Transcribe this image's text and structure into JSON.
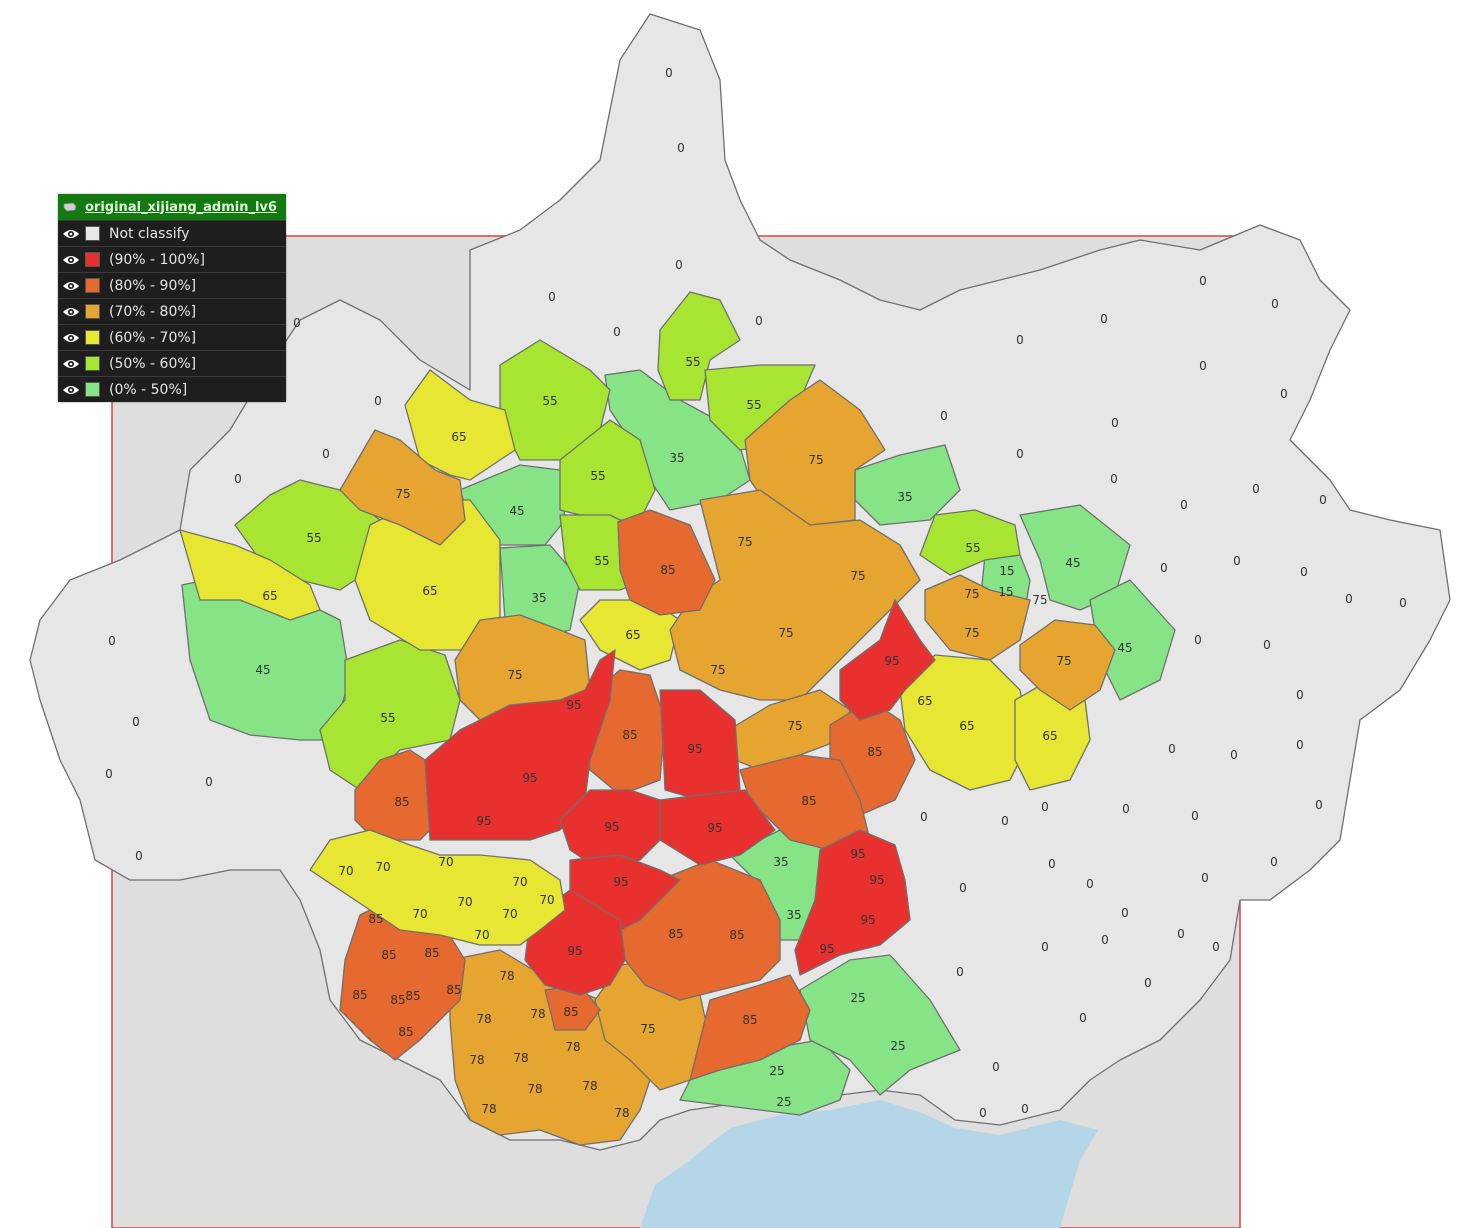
{
  "legend": {
    "layer_name": "original_xijiang_admin_lv6",
    "layer_icon": "layer-icon",
    "items": [
      {
        "label": "Not classify",
        "color": "#e6e6e6",
        "icon": "eye-icon"
      },
      {
        "label": "(90% - 100%]",
        "color": "#e8312f",
        "icon": "eye-icon"
      },
      {
        "label": "(80% - 90%]",
        "color": "#e66a2f",
        "icon": "eye-icon"
      },
      {
        "label": "(70% - 80%]",
        "color": "#e6a431",
        "icon": "eye-icon"
      },
      {
        "label": "(60% - 70%]",
        "color": "#e6e633",
        "icon": "eye-icon"
      },
      {
        "label": "(50% - 60%]",
        "color": "#a8e432",
        "icon": "eye-icon"
      },
      {
        "label": "(0% - 50%]",
        "color": "#86e487",
        "icon": "eye-icon"
      }
    ]
  },
  "colors": {
    "background_box": "#dedede",
    "box_border": "#e34040",
    "sea": "#b5d6e8",
    "region_border": "#6f6f6f"
  },
  "labels": [
    "0",
    "15",
    "25",
    "35",
    "45",
    "55",
    "65",
    "70",
    "75",
    "78",
    "85",
    "95"
  ]
}
